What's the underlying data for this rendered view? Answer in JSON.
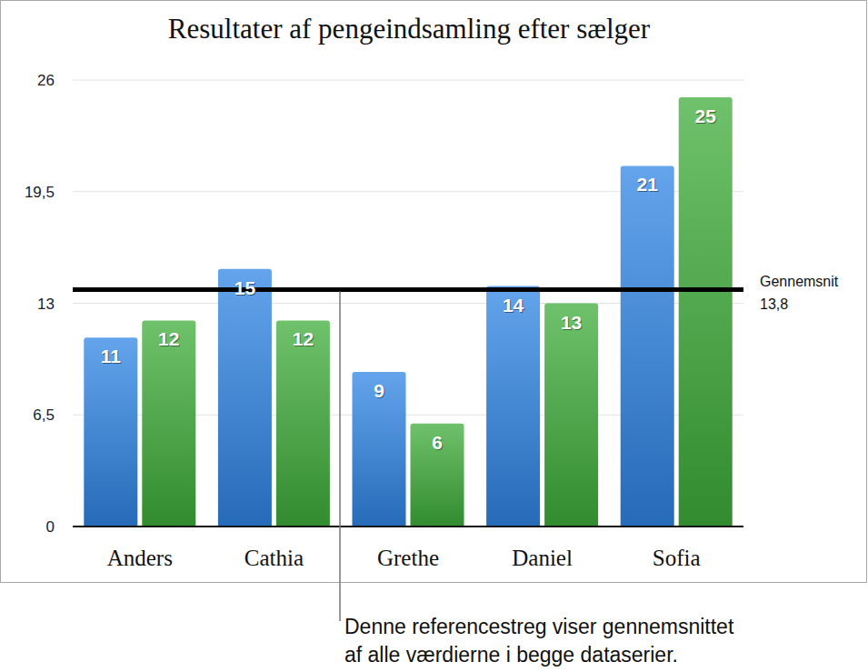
{
  "chart_data": {
    "type": "bar",
    "title": "Resultater af pengeindsamling efter sælger",
    "categories": [
      "Anders",
      "Cathia",
      "Grethe",
      "Daniel",
      "Sofia"
    ],
    "series": [
      {
        "color": "#2f86e6",
        "values": [
          11,
          15,
          9,
          14,
          21
        ]
      },
      {
        "color": "#3fae3a",
        "values": [
          12,
          12,
          6,
          13,
          25
        ]
      }
    ],
    "ylim": [
      0,
      26
    ],
    "yticks": [
      0,
      {
        "value": 6.5,
        "label": "6,5"
      },
      13,
      {
        "value": 19.5,
        "label": "19,5"
      },
      26
    ],
    "grid": true,
    "data_labels": true,
    "reference_line": {
      "value": 13.8,
      "label": "Gennemsnit",
      "value_label": "13,8"
    },
    "annotation": [
      "Denne referencestreg viser gennemsnittet",
      "af alle værdierne i begge dataserier."
    ]
  }
}
